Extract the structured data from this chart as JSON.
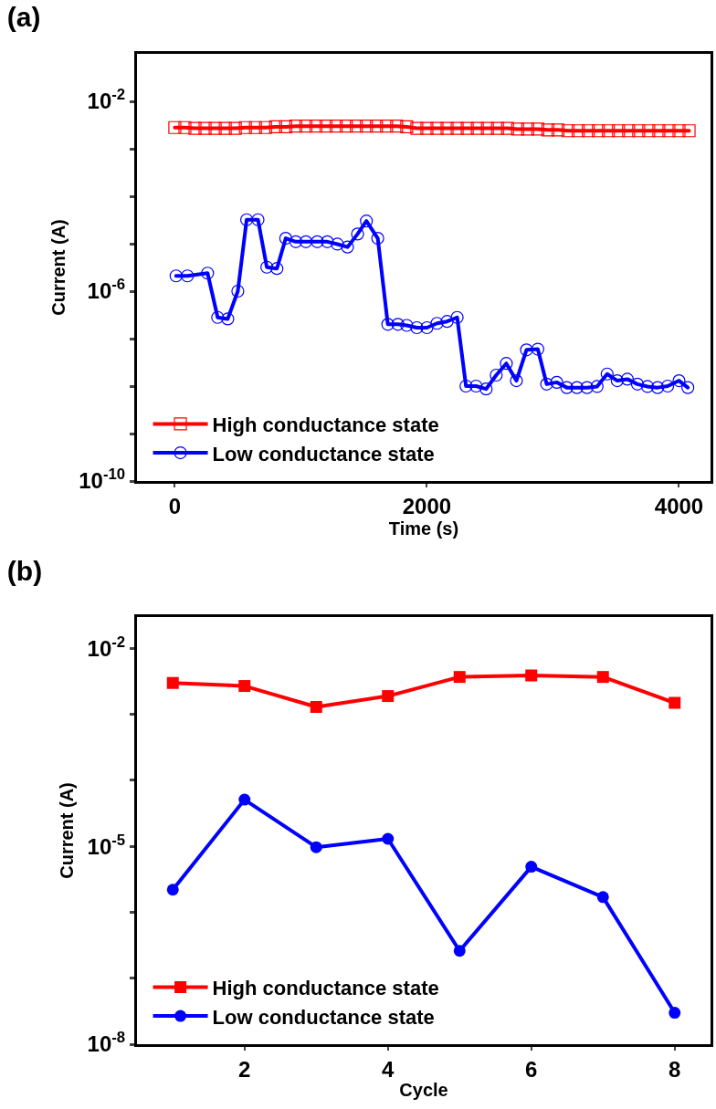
{
  "chart_data": [
    {
      "type": "line",
      "title": "(a)",
      "xlabel": "Time (s)",
      "ylabel": "Current (A)",
      "log": "y",
      "grid": false,
      "legend": "bottom left",
      "xlim": [
        -300,
        4250
      ],
      "xticks": [
        0,
        2000,
        4000
      ],
      "ylim": [
        1e-10,
        0.1
      ],
      "yticks": [
        {
          "value": 1e-10,
          "label": "10$^{-10}$"
        },
        {
          "value": 1e-09,
          "label": null
        },
        {
          "value": 1e-08,
          "label": null
        },
        {
          "value": 1e-07,
          "label": null
        },
        {
          "value": 1e-06,
          "label": "10$^{-6}$"
        },
        {
          "value": 1e-05,
          "label": null
        },
        {
          "value": 0.0001,
          "label": null
        },
        {
          "value": 0.001,
          "label": null
        },
        {
          "value": 0.01,
          "label": "10$^{-2}$"
        }
      ],
      "series": [
        {
          "name": "High conductance state",
          "color": "#ff0000",
          "marker": "square",
          "x": [
            0,
            80,
            160,
            240,
            320,
            400,
            480,
            560,
            640,
            720,
            800,
            880,
            960,
            1040,
            1120,
            1200,
            1280,
            1360,
            1440,
            1520,
            1600,
            1680,
            1760,
            1840,
            1920,
            2000,
            2080,
            2160,
            2240,
            2320,
            2400,
            2480,
            2560,
            2640,
            2720,
            2800,
            2880,
            2960,
            3040,
            3120,
            3200,
            3280,
            3360,
            3440,
            3520,
            3600,
            3680,
            3760,
            3840,
            3920,
            4000,
            4080
          ],
          "values": [
            0.0028,
            0.0028,
            0.0027,
            0.0027,
            0.0027,
            0.0027,
            0.0027,
            0.0028,
            0.0028,
            0.0028,
            0.0029,
            0.0029,
            0.003,
            0.003,
            0.003,
            0.003,
            0.003,
            0.003,
            0.003,
            0.003,
            0.003,
            0.003,
            0.003,
            0.0029,
            0.0027,
            0.0027,
            0.0027,
            0.0027,
            0.0027,
            0.0027,
            0.0027,
            0.0027,
            0.0027,
            0.0027,
            0.0026,
            0.0026,
            0.0026,
            0.0025,
            0.0025,
            0.0024,
            0.0024,
            0.0024,
            0.0024,
            0.0024,
            0.0024,
            0.0024,
            0.0024,
            0.0024,
            0.0024,
            0.0024,
            0.0024,
            0.0024
          ]
        },
        {
          "name": "Low conductance state",
          "color": "#0000ff",
          "marker": "circle",
          "x": [
            10,
            100,
            260,
            340,
            420,
            500,
            570,
            660,
            730,
            810,
            880,
            960,
            1040,
            1130,
            1210,
            1290,
            1370,
            1450,
            1520,
            1610,
            1690,
            1770,
            1840,
            1920,
            2000,
            2080,
            2160,
            2240,
            2310,
            2390,
            2470,
            2550,
            2630,
            2710,
            2790,
            2880,
            2950,
            3030,
            3110,
            3190,
            3270,
            3350,
            3430,
            3510,
            3590,
            3670,
            3750,
            3830,
            3910,
            4000,
            4070
          ],
          "values": [
            2.1e-06,
            2.1e-06,
            2.4e-06,
            2.8e-07,
            2.6e-07,
            1e-06,
            3.2e-05,
            3.2e-05,
            3.2e-06,
            3e-06,
            1.3e-05,
            1.1e-05,
            1.1e-05,
            1.1e-05,
            1.1e-05,
            9.8e-06,
            8.5e-06,
            1.6e-05,
            3e-05,
            1.3e-05,
            2e-07,
            2e-07,
            1.9e-07,
            1.7e-07,
            1.7e-07,
            2.1e-07,
            2.3e-07,
            2.8e-07,
            1e-08,
            1e-08,
            8.7e-09,
            1.7e-08,
            3e-08,
            1.3e-08,
            5.8e-08,
            6e-08,
            1.1e-08,
            1.2e-08,
            9.3e-09,
            9.3e-09,
            9.3e-09,
            9.8e-09,
            1.8e-08,
            1.3e-08,
            1.4e-08,
            1.1e-08,
            9.8e-09,
            9.3e-09,
            1e-08,
            1.3e-08,
            9.3e-09
          ]
        }
      ]
    },
    {
      "type": "line",
      "title": "(b)",
      "xlabel": "Cycle",
      "ylabel": "Current (A)",
      "log": "y",
      "grid": false,
      "legend": "bottom left",
      "xlim": [
        0.5,
        8.5
      ],
      "xticks": [
        2,
        4,
        6,
        8
      ],
      "ylim": [
        1e-08,
        0.03
      ],
      "yticks": [
        {
          "value": 1e-08,
          "label": "10$^{-8}$"
        },
        {
          "value": 1e-07,
          "label": null
        },
        {
          "value": 1e-06,
          "label": null
        },
        {
          "value": 1e-05,
          "label": "10$^{-5}$"
        },
        {
          "value": 0.0001,
          "label": null
        },
        {
          "value": 0.001,
          "label": null
        },
        {
          "value": 0.01,
          "label": "10$^{-2}$"
        }
      ],
      "x": [
        1,
        2,
        3,
        4,
        5,
        6,
        7,
        8
      ],
      "series": [
        {
          "name": "High conductance state",
          "color": "#ff0000",
          "marker": "square",
          "values": [
            0.003,
            0.0027,
            0.0013,
            0.0019,
            0.0037,
            0.0039,
            0.0037,
            0.0015
          ]
        },
        {
          "name": "Low conductance state",
          "color": "#0000ff",
          "marker": "circle",
          "values": [
            2.2e-06,
            5.1e-05,
            9.7e-06,
            1.3e-05,
            2.6e-07,
            4.9e-06,
            1.7e-06,
            3e-08
          ]
        }
      ]
    }
  ]
}
